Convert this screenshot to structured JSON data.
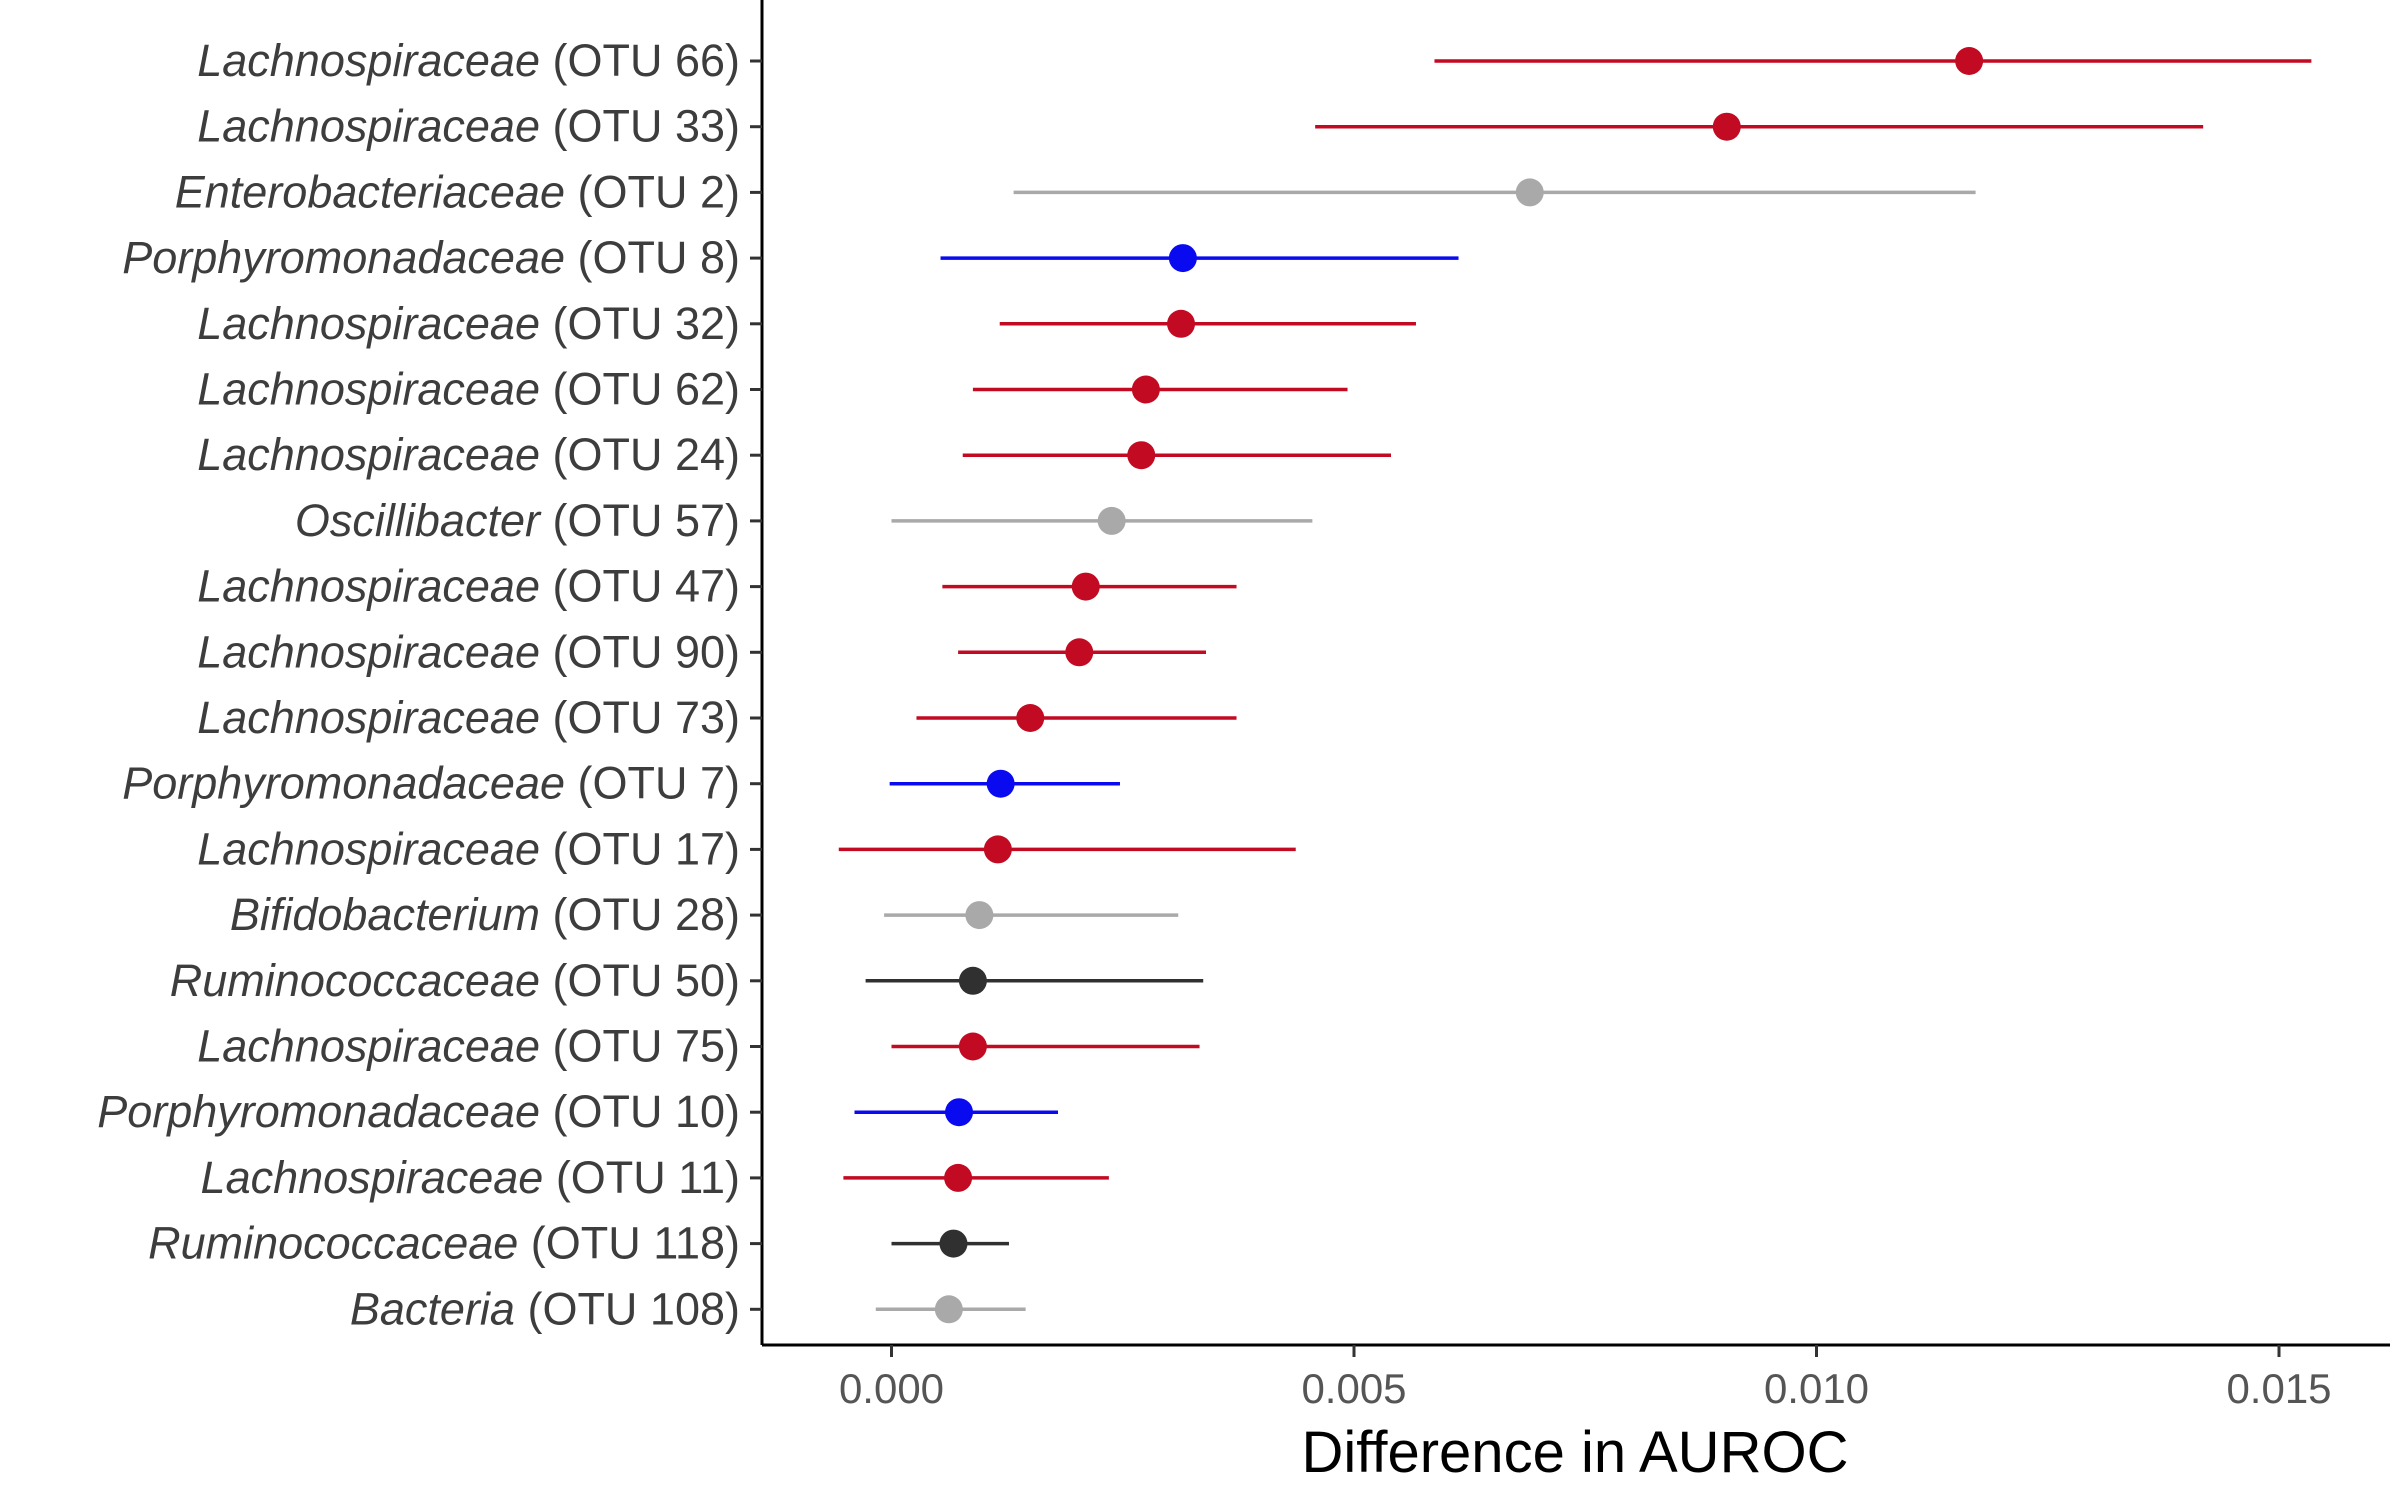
{
  "chart_data": {
    "type": "scatter",
    "title": "",
    "xlabel": "Difference in AUROC",
    "ylabel": "",
    "xlim": [
      -0.0014,
      0.0162
    ],
    "x_ticks": [
      {
        "value": 0.0,
        "label": "0.000"
      },
      {
        "value": 0.005,
        "label": "0.005"
      },
      {
        "value": 0.01,
        "label": "0.010"
      },
      {
        "value": 0.015,
        "label": "0.015"
      }
    ],
    "grid": false,
    "legend": "none",
    "colors": {
      "red": "#c20a22",
      "blue": "#0a0af0",
      "gray": "#a9a9a9",
      "black": "#303030"
    },
    "points": [
      {
        "taxon": "Lachnospiraceae",
        "otu": "(OTU 66)",
        "x": 0.01165,
        "low": 0.00587,
        "high": 0.01535,
        "color": "red"
      },
      {
        "taxon": "Lachnospiraceae",
        "otu": "(OTU 33)",
        "x": 0.00903,
        "low": 0.00458,
        "high": 0.01418,
        "color": "red"
      },
      {
        "taxon": "Enterobacteriaceae",
        "otu": "(OTU 2)",
        "x": 0.0069,
        "low": 0.00132,
        "high": 0.01172,
        "color": "gray"
      },
      {
        "taxon": "Porphyromonadaceae",
        "otu": "(OTU 8)",
        "x": 0.00315,
        "low": 0.00053,
        "high": 0.00613,
        "color": "blue"
      },
      {
        "taxon": "Lachnospiraceae",
        "otu": "(OTU 32)",
        "x": 0.00313,
        "low": 0.00117,
        "high": 0.00567,
        "color": "red"
      },
      {
        "taxon": "Lachnospiraceae",
        "otu": "(OTU 62)",
        "x": 0.00275,
        "low": 0.00088,
        "high": 0.00493,
        "color": "red"
      },
      {
        "taxon": "Lachnospiraceae",
        "otu": "(OTU 24)",
        "x": 0.0027,
        "low": 0.00077,
        "high": 0.0054,
        "color": "red"
      },
      {
        "taxon": "Oscillibacter",
        "otu": "(OTU 57)",
        "x": 0.00238,
        "low": 0.0,
        "high": 0.00455,
        "color": "gray"
      },
      {
        "taxon": "Lachnospiraceae",
        "otu": "(OTU 47)",
        "x": 0.0021,
        "low": 0.00055,
        "high": 0.00373,
        "color": "red"
      },
      {
        "taxon": "Lachnospiraceae",
        "otu": "(OTU 90)",
        "x": 0.00203,
        "low": 0.00072,
        "high": 0.0034,
        "color": "red"
      },
      {
        "taxon": "Lachnospiraceae",
        "otu": "(OTU 73)",
        "x": 0.0015,
        "low": 0.00027,
        "high": 0.00373,
        "color": "red"
      },
      {
        "taxon": "Porphyromonadaceae",
        "otu": "(OTU 7)",
        "x": 0.00118,
        "low": -2e-05,
        "high": 0.00247,
        "color": "blue"
      },
      {
        "taxon": "Lachnospiraceae",
        "otu": "(OTU 17)",
        "x": 0.00115,
        "low": -0.00057,
        "high": 0.00437,
        "color": "red"
      },
      {
        "taxon": "Bifidobacterium",
        "otu": "(OTU 28)",
        "x": 0.00095,
        "low": -8e-05,
        "high": 0.0031,
        "color": "gray"
      },
      {
        "taxon": "Ruminococcaceae",
        "otu": "(OTU 50)",
        "x": 0.00088,
        "low": -0.00028,
        "high": 0.00337,
        "color": "black"
      },
      {
        "taxon": "Lachnospiraceae",
        "otu": "(OTU 75)",
        "x": 0.00088,
        "low": 0.0,
        "high": 0.00333,
        "color": "red"
      },
      {
        "taxon": "Porphyromonadaceae",
        "otu": "(OTU 10)",
        "x": 0.00073,
        "low": -0.0004,
        "high": 0.0018,
        "color": "blue"
      },
      {
        "taxon": "Lachnospiraceae",
        "otu": "(OTU 11)",
        "x": 0.00072,
        "low": -0.00052,
        "high": 0.00235,
        "color": "red"
      },
      {
        "taxon": "Ruminococcaceae",
        "otu": "(OTU 118)",
        "x": 0.00067,
        "low": 0.0,
        "high": 0.00127,
        "color": "black"
      },
      {
        "taxon": "Bacteria",
        "otu": "(OTU 108)",
        "x": 0.00062,
        "low": -0.00017,
        "high": 0.00145,
        "color": "gray"
      }
    ]
  }
}
